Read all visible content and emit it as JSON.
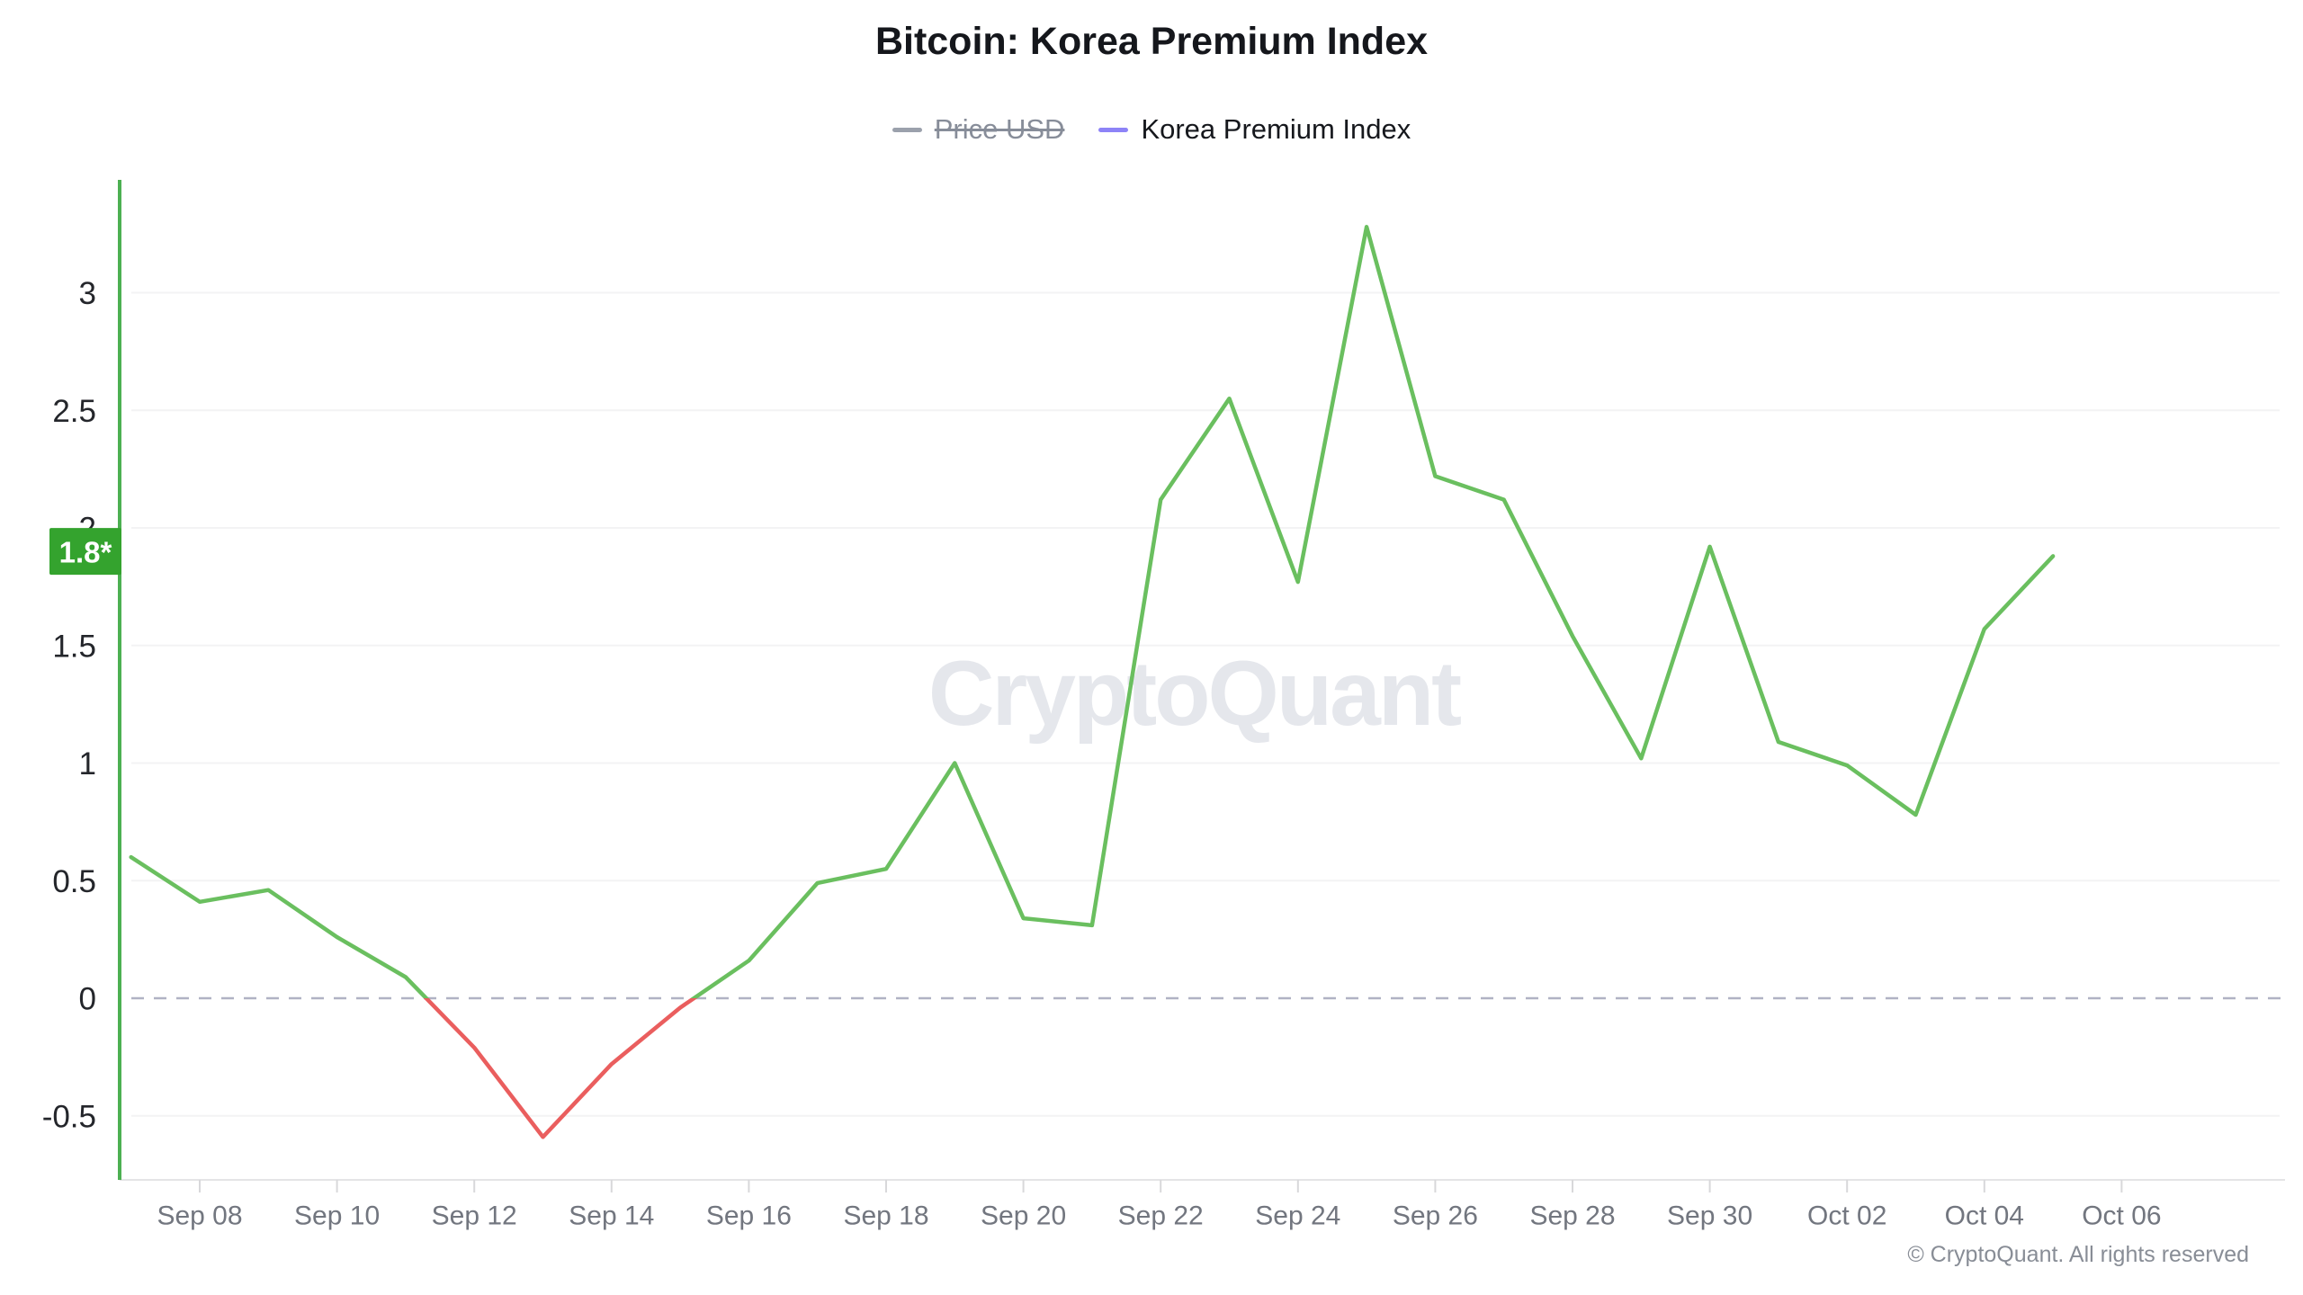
{
  "header": {
    "title": "Bitcoin: Korea Premium Index"
  },
  "legend": {
    "items": [
      {
        "label": "Price USD",
        "marker_color": "#9ba1ac",
        "text_color": "#878d99",
        "disabled": true
      },
      {
        "label": "Korea Premium Index",
        "marker_color": "#8d83f7",
        "text_color": "#16181d",
        "disabled": false
      }
    ]
  },
  "watermark": {
    "text": "CryptoQuant",
    "color": "#e5e7ec"
  },
  "footer": {
    "copyright": "© CryptoQuant. All rights reserved"
  },
  "colors": {
    "background": "#ffffff",
    "y_label": "#24262b",
    "x_label": "#72767f",
    "baseline": "#e4e4e6",
    "tick": "#d8d8da",
    "grid": "#f3f3f4",
    "zero_line": "#b0b2c4",
    "axis_line_green": "#4db052",
    "series_green": "#6abf5f",
    "series_red": "#ea5e5e",
    "badge_green": "#34a32e"
  },
  "chart_data": {
    "type": "line",
    "title": "Bitcoin: Korea Premium Index",
    "legend_position": "top",
    "series": [
      {
        "name": "Korea Premium Index",
        "dates": [
          "Sep 07",
          "Sep 08",
          "Sep 09",
          "Sep 10",
          "Sep 11",
          "Sep 12",
          "Sep 13",
          "Sep 14",
          "Sep 15",
          "Sep 16",
          "Sep 17",
          "Sep 18",
          "Sep 19",
          "Sep 20",
          "Sep 21",
          "Sep 22",
          "Sep 23",
          "Sep 24",
          "Sep 25",
          "Sep 26",
          "Sep 27",
          "Sep 28",
          "Sep 29",
          "Sep 30",
          "Oct 01",
          "Oct 02",
          "Oct 03",
          "Oct 04",
          "Oct 05"
        ],
        "values": [
          0.6,
          0.41,
          0.46,
          0.26,
          0.09,
          -0.21,
          -0.59,
          -0.28,
          -0.04,
          0.16,
          0.49,
          0.55,
          1.0,
          0.34,
          0.31,
          2.12,
          2.55,
          1.77,
          3.28,
          2.22,
          2.12,
          1.54,
          1.02,
          1.92,
          1.09,
          0.99,
          0.78,
          1.57,
          1.88
        ],
        "color_above_zero": "#6abf5f",
        "color_below_zero": "#ea5e5e"
      }
    ],
    "disabled_series": [
      {
        "name": "Price USD"
      }
    ],
    "x_tick_labels": [
      "Sep 08",
      "Sep 10",
      "Sep 12",
      "Sep 14",
      "Sep 16",
      "Sep 18",
      "Sep 20",
      "Sep 22",
      "Sep 24",
      "Sep 26",
      "Sep 28",
      "Sep 30",
      "Oct 02",
      "Oct 04",
      "Oct 06"
    ],
    "y_tick_labels": [
      "3",
      "2.5",
      "2",
      "1.5",
      "1",
      "0.5",
      "0",
      "-0.5"
    ],
    "y_tick_values": [
      3,
      2.5,
      2,
      1.5,
      1,
      0.5,
      0,
      -0.5
    ],
    "ylim": [
      -0.77,
      3.48
    ],
    "grid": {
      "on": true,
      "color": "#f3f3f4"
    },
    "zero_line": {
      "style": "dashed",
      "color": "#b0b2c4"
    },
    "axis_line_color": "#4db052",
    "last_value_badge": {
      "label": "1.8*",
      "value": 1.9,
      "bg_color": "#34a32e",
      "text_color": "#ffffff"
    }
  }
}
